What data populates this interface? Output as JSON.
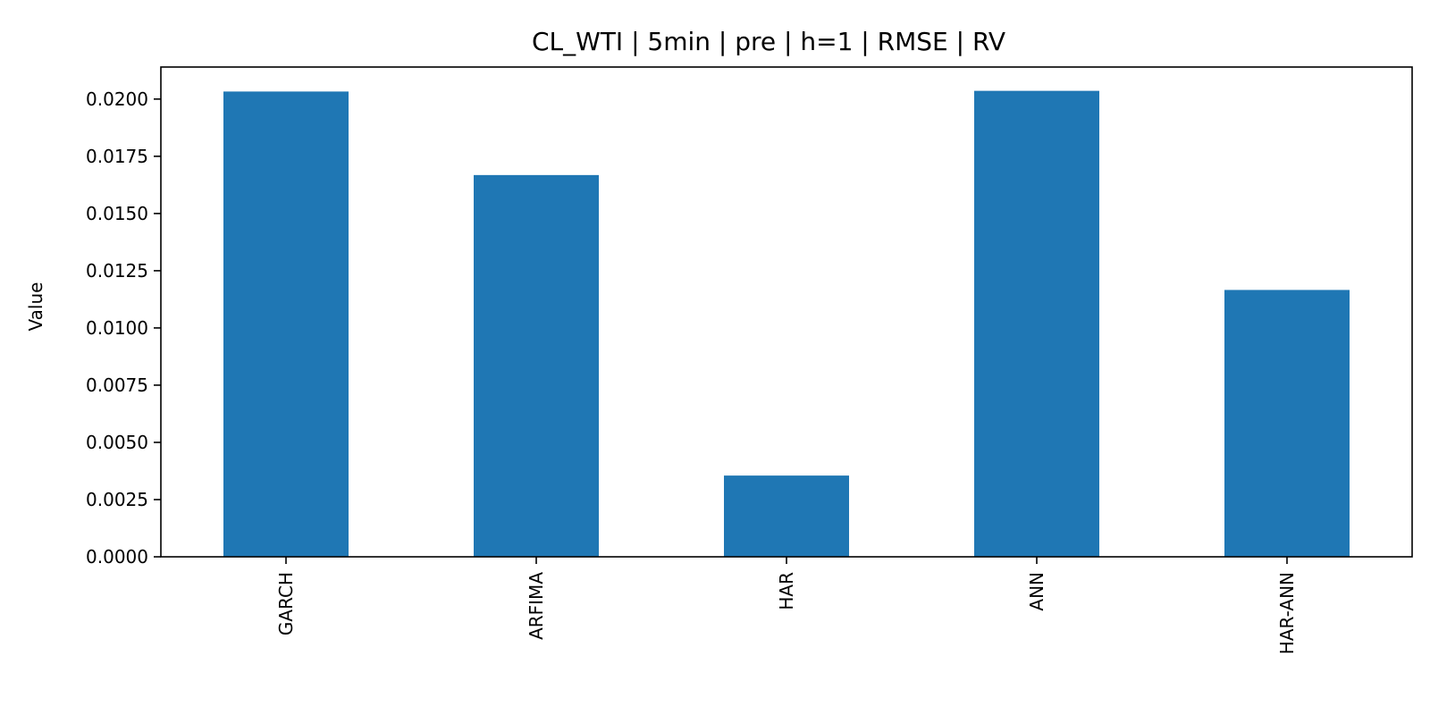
{
  "chart_data": {
    "type": "bar",
    "title": "CL_WTI | 5min | pre | h=1 | RMSE | RV",
    "xlabel": "",
    "ylabel": "Value",
    "categories": [
      "GARCH",
      "ARFIMA",
      "HAR",
      "ANN",
      "HAR-ANN"
    ],
    "values": [
      0.02033,
      0.01668,
      0.00355,
      0.02036,
      0.01166
    ],
    "ylim": [
      0,
      0.0214
    ],
    "yticks": [
      "0.0000",
      "0.0025",
      "0.0050",
      "0.0075",
      "0.0100",
      "0.0125",
      "0.0150",
      "0.0175",
      "0.0200"
    ],
    "bar_color": "#1f77b4",
    "grid": false,
    "legend": "none"
  }
}
